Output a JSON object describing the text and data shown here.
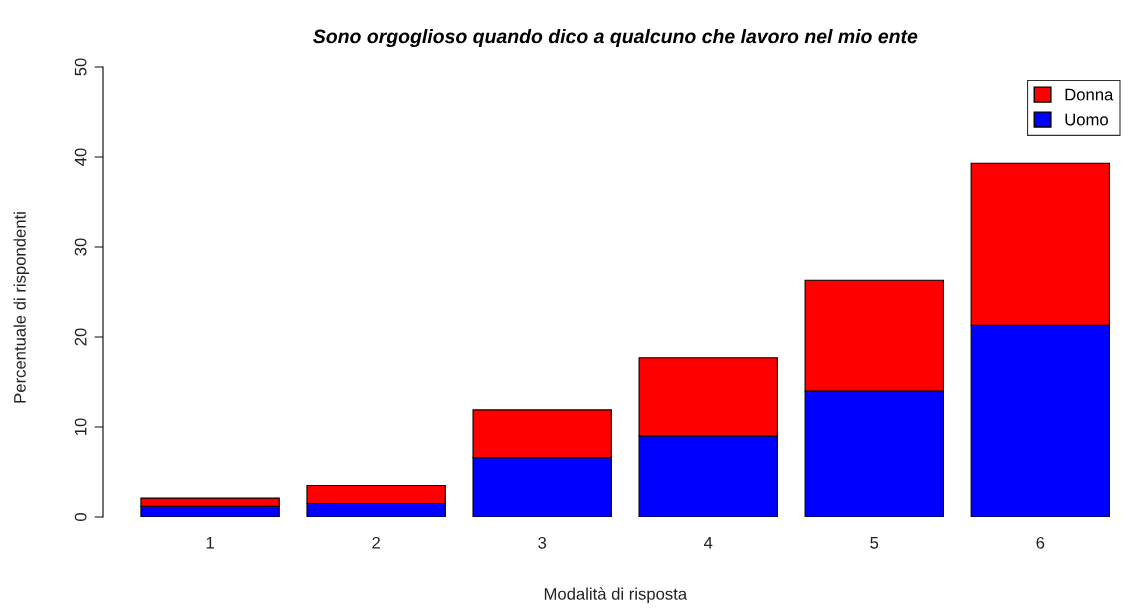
{
  "chart_data": {
    "type": "bar",
    "title": "Sono orgoglioso quando dico a qualcuno che lavoro nel mio ente",
    "xlabel": "Modalità di risposta",
    "ylabel": "Percentuale di rispondenti",
    "categories": [
      "1",
      "2",
      "3",
      "4",
      "5",
      "6"
    ],
    "stacked": true,
    "series": [
      {
        "name": "Uomo",
        "color": "#0000ff",
        "values": [
          1.2,
          1.5,
          6.6,
          9.0,
          14.0,
          21.3
        ]
      },
      {
        "name": "Donna",
        "color": "#ff0000",
        "values": [
          0.9,
          2.0,
          5.3,
          8.7,
          12.3,
          18.0
        ]
      }
    ],
    "ylim": [
      0,
      50
    ],
    "yticks": [
      0,
      10,
      20,
      30,
      40,
      50
    ],
    "grid": false,
    "legend": "top right"
  }
}
